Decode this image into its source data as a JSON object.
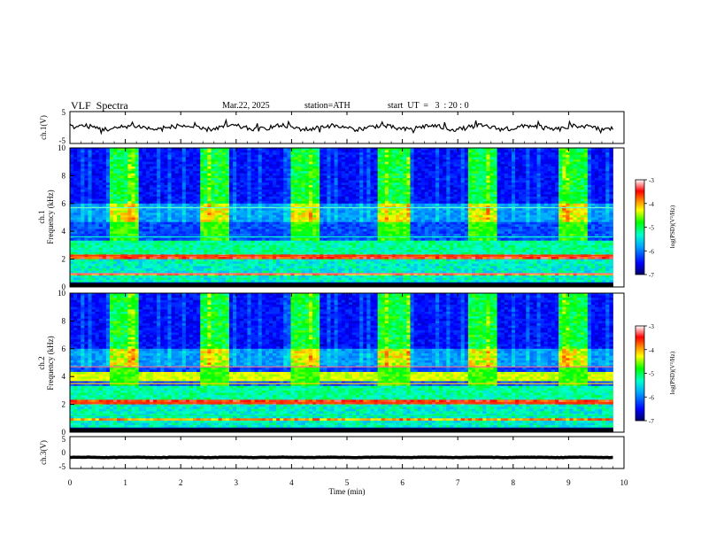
{
  "header": {
    "title": "VLF  Spectra",
    "date": "Mar.22, 2025",
    "station": "station=ATH",
    "start_ut": "start  UT  =   3  : 20 : 0"
  },
  "chart_data": {
    "type": "heatmap",
    "time_axis": {
      "label": "Time  (min)",
      "range": [
        0,
        10
      ],
      "ticks": [
        "0",
        "1",
        "2",
        "3",
        "4",
        "5",
        "6",
        "7",
        "8",
        "9",
        "10"
      ]
    },
    "colorbar": {
      "label": "log(PSD)(V²/Hz)",
      "range": [
        -7,
        -3
      ],
      "ticks": [
        "-3",
        "-4",
        "-5",
        "-6",
        "-7"
      ],
      "colors": [
        "#000066",
        "#0000ff",
        "#00aaff",
        "#00ffcc",
        "#00ff00",
        "#ffff00",
        "#ff8800",
        "#ff0000",
        "#ffffff"
      ]
    },
    "panels": [
      {
        "id": "ch1-wave",
        "type": "line",
        "ylabel": "ch.1(V)",
        "ylim": [
          -5,
          5
        ],
        "yticks": [
          "5",
          "-5"
        ],
        "baseline": 0
      },
      {
        "id": "ch1-spec",
        "type": "heatmap",
        "ylabel_top": "ch.1",
        "ylabel": "Frequency  (kHz)",
        "ylim": [
          0,
          10
        ],
        "yticks": [
          "10",
          "8",
          "6",
          "4",
          "2",
          "0"
        ]
      },
      {
        "id": "ch2-spec",
        "type": "heatmap",
        "ylabel_top": "ch.2",
        "ylabel": "Frequency  (kHz)",
        "ylim": [
          0,
          10
        ],
        "yticks": [
          "10",
          "8",
          "6",
          "4",
          "2",
          "0"
        ]
      },
      {
        "id": "ch3-wave",
        "type": "line",
        "ylabel": "ch.3(V)",
        "ylim": [
          -5,
          5
        ],
        "yticks": [
          "5",
          "0",
          "-5"
        ],
        "baseline": -1.5
      }
    ],
    "data_end_min": 9.8
  }
}
